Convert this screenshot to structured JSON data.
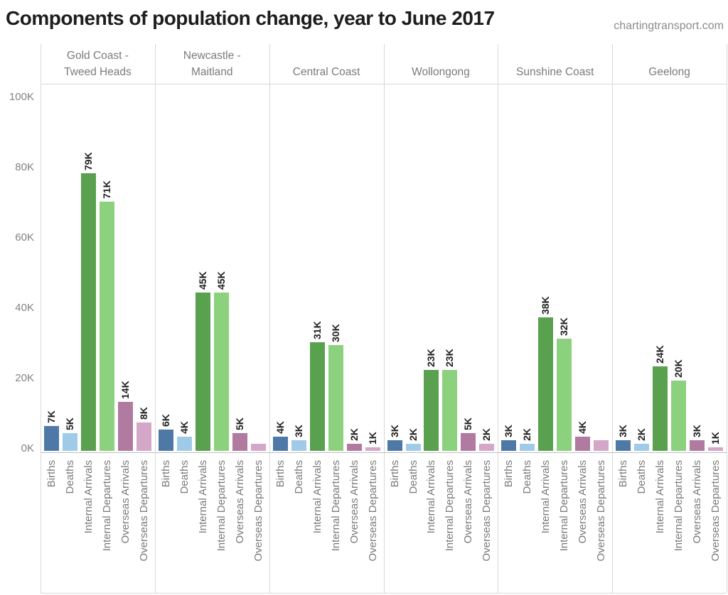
{
  "title": "Components of population change, year to June 2017",
  "source": "chartingtransport.com",
  "chart_data": {
    "type": "bar",
    "title": "Components of population change, year to June 2017",
    "unit": "thousands of people (K)",
    "grid": "off",
    "legend": "none",
    "y_axis": {
      "min": 0,
      "max": 100,
      "tick_values": [
        0,
        20,
        40,
        60,
        80,
        100
      ],
      "tick_labels": [
        "0K",
        "20K",
        "40K",
        "60K",
        "80K",
        "100K"
      ]
    },
    "categories": [
      "Births",
      "Deaths",
      "Internal Arrivals",
      "Internal Departures",
      "Overseas Arrivals",
      "Overseas Departures"
    ],
    "category_colors": [
      "#4e79a7",
      "#a0cbe8",
      "#59a14f",
      "#8cd17d",
      "#b07aa1",
      "#d4a6c8"
    ],
    "groups": [
      {
        "name": "Gold Coast - Tweed Heads",
        "name_lines": "Gold Coast -\nTweed Heads",
        "values": [
          7,
          5,
          79,
          71,
          14,
          8
        ],
        "labels": [
          "7K",
          "5K",
          "79K",
          "71K",
          "14K",
          "8K"
        ]
      },
      {
        "name": "Newcastle - Maitland",
        "name_lines": "Newcastle -\nMaitland",
        "values": [
          6,
          4,
          45,
          45,
          5,
          2
        ],
        "labels": [
          "6K",
          "4K",
          "45K",
          "45K",
          "5K",
          ""
        ]
      },
      {
        "name": "Central Coast",
        "name_lines": "Central Coast",
        "values": [
          4,
          3,
          31,
          30,
          2,
          1
        ],
        "labels": [
          "4K",
          "3K",
          "31K",
          "30K",
          "2K",
          "1K"
        ]
      },
      {
        "name": "Wollongong",
        "name_lines": "Wollongong",
        "values": [
          3,
          2,
          23,
          23,
          5,
          2
        ],
        "labels": [
          "3K",
          "2K",
          "23K",
          "23K",
          "5K",
          "2K"
        ]
      },
      {
        "name": "Sunshine Coast",
        "name_lines": "Sunshine Coast",
        "values": [
          3,
          2,
          38,
          32,
          4,
          3
        ],
        "labels": [
          "3K",
          "2K",
          "38K",
          "32K",
          "4K",
          ""
        ]
      },
      {
        "name": "Geelong",
        "name_lines": "Geelong",
        "values": [
          3,
          2,
          24,
          20,
          3,
          1
        ],
        "labels": [
          "3K",
          "2K",
          "24K",
          "20K",
          "3K",
          "1K"
        ]
      }
    ]
  }
}
